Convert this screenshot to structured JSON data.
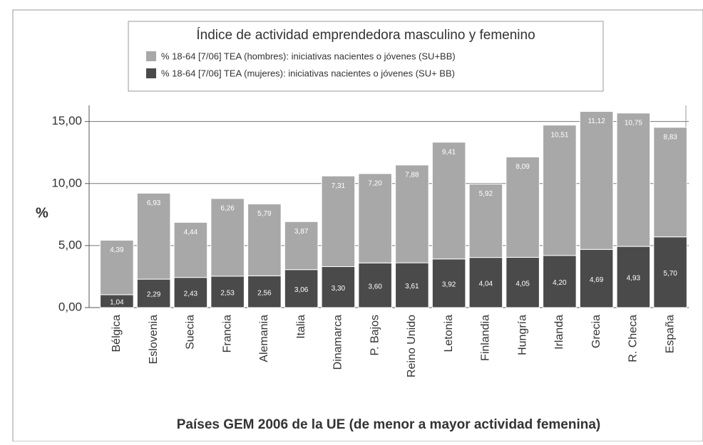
{
  "chart_data": {
    "type": "stacked_bar",
    "title": "Índice de actividad emprendedora masculino y femenino",
    "y_label": "%",
    "x_label": "Países GEM 2006 de la UE (de menor a mayor actividad femenina)",
    "categories": [
      "Bélgica",
      "Eslovenia",
      "Suecia",
      "Francia",
      "Alemania",
      "Italia",
      "Dinamarca",
      "P. Bajos",
      "Reino Unido",
      "Letonia",
      "Finlandia",
      "Hungría",
      "Irlanda",
      "Grecia",
      "R. Checa",
      "España"
    ],
    "series": [
      {
        "name": "% 18-64  [7/06] TEA (mujeres): iniciativas nacientes o jóvenes (SU+ BB)",
        "color": "#4a4a4a",
        "values": [
          1.04,
          2.29,
          2.43,
          2.53,
          2.56,
          3.06,
          3.3,
          3.6,
          3.61,
          3.92,
          4.04,
          4.05,
          4.2,
          4.69,
          4.93,
          5.7
        ],
        "value_labels": [
          "1,04",
          "2,29",
          "2,43",
          "2,53",
          "2,56",
          "3,06",
          "3,30",
          "3,60",
          "3,61",
          "3,92",
          "4,04",
          "4,05",
          "4,20",
          "4,69",
          "4,93",
          "5,70"
        ]
      },
      {
        "name": "% 18-64  [7/06] TEA (hombres): iniciativas nacientes o jóvenes (SU+BB)",
        "color": "#a8a8a8",
        "values": [
          4.39,
          6.93,
          4.44,
          6.26,
          5.79,
          3.87,
          7.31,
          7.2,
          7.88,
          9.41,
          5.92,
          8.09,
          10.51,
          11.12,
          10.75,
          8.83
        ],
        "value_labels": [
          "4,39",
          "6,93",
          "4,44",
          "6,26",
          "5,79",
          "3,87",
          "7,31",
          "7,20",
          "7,88",
          "9,41",
          "5,92",
          "8,09",
          "10,51",
          "11,12",
          "10,75",
          "8,83"
        ]
      }
    ],
    "ylim": [
      0,
      16.3
    ],
    "yticks": [
      {
        "value": 0,
        "label": "0,00"
      },
      {
        "value": 5,
        "label": "5,00"
      },
      {
        "value": 10,
        "label": "10,00"
      },
      {
        "value": 15,
        "label": "15,00"
      }
    ],
    "grid": true
  }
}
